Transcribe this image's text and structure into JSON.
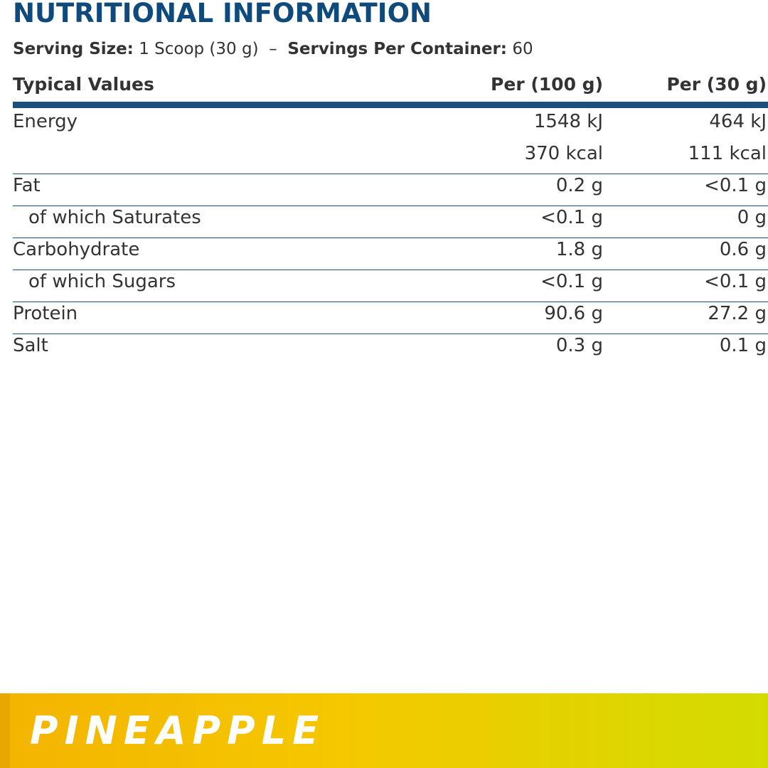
{
  "header": {
    "title": "NUTRITIONAL INFORMATION"
  },
  "serving": {
    "size_label": "Serving Size:",
    "size_value": "1 Scoop (30 g)",
    "separator": "–",
    "servings_label": "Servings Per Container:",
    "servings_value": "60"
  },
  "table": {
    "columns": [
      "Typical Values",
      "Per (100 g)",
      "Per (30 g)"
    ],
    "rows": [
      {
        "label": "Energy",
        "indent": false,
        "per_100g": [
          "1548 kJ",
          "370 kcal"
        ],
        "per_30g": [
          "464 kJ",
          "111 kcal"
        ]
      },
      {
        "label": "Fat",
        "indent": false,
        "per_100g": [
          "0.2 g"
        ],
        "per_30g": [
          "<0.1 g"
        ]
      },
      {
        "label": "of which Saturates",
        "indent": true,
        "per_100g": [
          "<0.1 g"
        ],
        "per_30g": [
          "0 g"
        ]
      },
      {
        "label": "Carbohydrate",
        "indent": false,
        "per_100g": [
          "1.8 g"
        ],
        "per_30g": [
          "0.6 g"
        ]
      },
      {
        "label": "of which Sugars",
        "indent": true,
        "per_100g": [
          "<0.1 g"
        ],
        "per_30g": [
          "<0.1 g"
        ]
      },
      {
        "label": "Protein",
        "indent": false,
        "per_100g": [
          "90.6 g"
        ],
        "per_30g": [
          "27.2 g"
        ]
      },
      {
        "label": "Salt",
        "indent": false,
        "per_100g": [
          "0.3 g"
        ],
        "per_30g": [
          "0.1 g"
        ]
      }
    ]
  },
  "footer": {
    "flavour": "PINEAPPLE"
  }
}
